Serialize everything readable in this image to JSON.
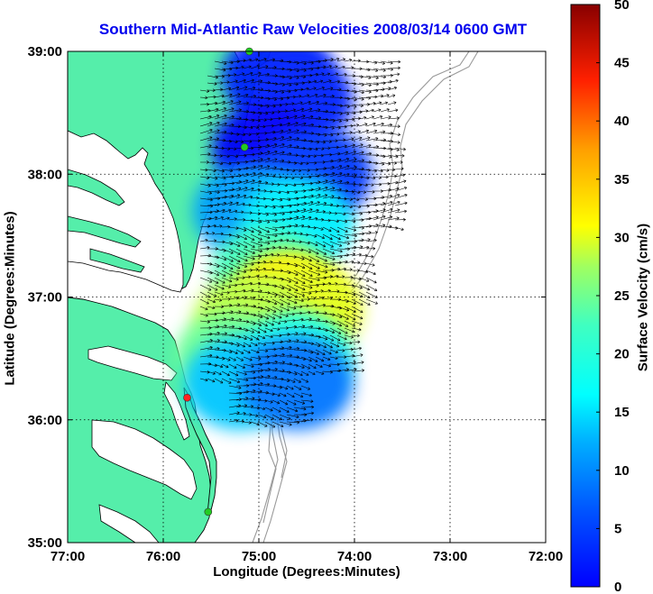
{
  "title": "Southern Mid-Atlantic Raw Velocities 2008/03/14 0600 GMT",
  "x_axis": {
    "label": "Longitude (Degrees:Minutes)",
    "ticks": [
      {
        "value": -77,
        "label": "77:00"
      },
      {
        "value": -76,
        "label": "76:00"
      },
      {
        "value": -75,
        "label": "75:00"
      },
      {
        "value": -74,
        "label": "74:00"
      },
      {
        "value": -73,
        "label": "73:00"
      },
      {
        "value": -72,
        "label": "72:00"
      }
    ],
    "range": [
      -77,
      -72
    ]
  },
  "y_axis": {
    "label": "Latitude (Degrees:Minutes)",
    "ticks": [
      {
        "value": 35,
        "label": "35:00"
      },
      {
        "value": 36,
        "label": "36:00"
      },
      {
        "value": 37,
        "label": "37:00"
      },
      {
        "value": 38,
        "label": "38:00"
      },
      {
        "value": 39,
        "label": "39:00"
      }
    ],
    "range": [
      35,
      39
    ]
  },
  "colorbar": {
    "label": "Surface Velocity (cm/s)",
    "range": [
      0,
      50
    ],
    "ticks": [
      {
        "value": 0,
        "label": "0"
      },
      {
        "value": 5,
        "label": "5"
      },
      {
        "value": 10,
        "label": "10"
      },
      {
        "value": 15,
        "label": "15"
      },
      {
        "value": 20,
        "label": "20"
      },
      {
        "value": 25,
        "label": "25"
      },
      {
        "value": 30,
        "label": "30"
      },
      {
        "value": 35,
        "label": "35"
      },
      {
        "value": 40,
        "label": "40"
      },
      {
        "value": 45,
        "label": "45"
      },
      {
        "value": 50,
        "label": "50"
      }
    ],
    "colormap": "jet"
  },
  "grid": "dotted",
  "colors": {
    "land": "#55eeaa",
    "water": "#ffffff",
    "coastline": "#000000",
    "bathymetry": "#999999",
    "title": "#0000ee"
  },
  "stations": [
    {
      "lon": -75.1,
      "lat": 39.0,
      "color": "#22cc22"
    },
    {
      "lon": -75.15,
      "lat": 38.22,
      "color": "#22cc22"
    },
    {
      "lon": -75.75,
      "lat": 36.18,
      "color": "#ff2222"
    },
    {
      "lon": -75.53,
      "lat": 35.25,
      "color": "#22cc22"
    }
  ],
  "chart_data": {
    "type": "heatmap",
    "title": "Southern Mid-Atlantic Raw Velocities 2008/03/14 0600 GMT",
    "xlabel": "Longitude (Degrees:Minutes)",
    "ylabel": "Latitude (Degrees:Minutes)",
    "xlim": [
      -77,
      -72
    ],
    "ylim": [
      35,
      39
    ],
    "color_label": "Surface Velocity (cm/s)",
    "color_range": [
      0,
      50
    ],
    "speed_field": [
      {
        "lon": -74.8,
        "lat": 38.8,
        "speed": 8
      },
      {
        "lon": -74.6,
        "lat": 38.6,
        "speed": 8
      },
      {
        "lon": -74.9,
        "lat": 38.2,
        "speed": 6
      },
      {
        "lon": -74.4,
        "lat": 38.0,
        "speed": 9
      },
      {
        "lon": -75.1,
        "lat": 37.7,
        "speed": 14
      },
      {
        "lon": -74.6,
        "lat": 37.6,
        "speed": 18
      },
      {
        "lon": -74.9,
        "lat": 37.2,
        "speed": 22
      },
      {
        "lon": -74.7,
        "lat": 37.0,
        "speed": 32
      },
      {
        "lon": -74.5,
        "lat": 36.9,
        "speed": 30
      },
      {
        "lon": -75.1,
        "lat": 36.8,
        "speed": 28
      },
      {
        "lon": -75.3,
        "lat": 36.5,
        "speed": 24
      },
      {
        "lon": -74.6,
        "lat": 36.5,
        "speed": 20
      },
      {
        "lon": -75.2,
        "lat": 36.3,
        "speed": 16
      },
      {
        "lon": -74.6,
        "lat": 36.3,
        "speed": 12
      }
    ]
  }
}
